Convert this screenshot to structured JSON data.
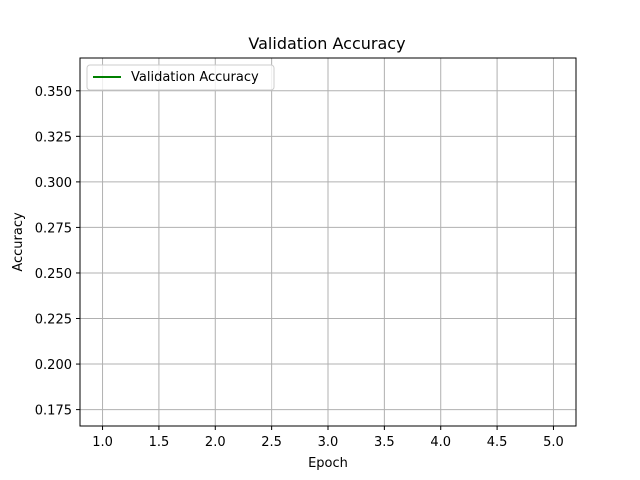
{
  "chart_data": {
    "type": "line",
    "title": "Validation Accuracy",
    "xlabel": "Epoch",
    "ylabel": "Accuracy",
    "xlim": [
      0.8,
      5.2
    ],
    "ylim": [
      0.166,
      0.368
    ],
    "xticks": [
      1.0,
      1.5,
      2.0,
      2.5,
      3.0,
      3.5,
      4.0,
      4.5,
      5.0
    ],
    "xtick_labels": [
      "1.0",
      "1.5",
      "2.0",
      "2.5",
      "3.0",
      "3.5",
      "4.0",
      "4.5",
      "5.0"
    ],
    "yticks": [
      0.175,
      0.2,
      0.225,
      0.25,
      0.275,
      0.3,
      0.325,
      0.35
    ],
    "ytick_labels": [
      "0.175",
      "0.200",
      "0.225",
      "0.250",
      "0.275",
      "0.300",
      "0.325",
      "0.350"
    ],
    "grid": true,
    "legend": {
      "position": "top-left"
    },
    "series": [
      {
        "name": "Validation Accuracy",
        "color": "#008000",
        "x": [],
        "y": []
      }
    ]
  }
}
